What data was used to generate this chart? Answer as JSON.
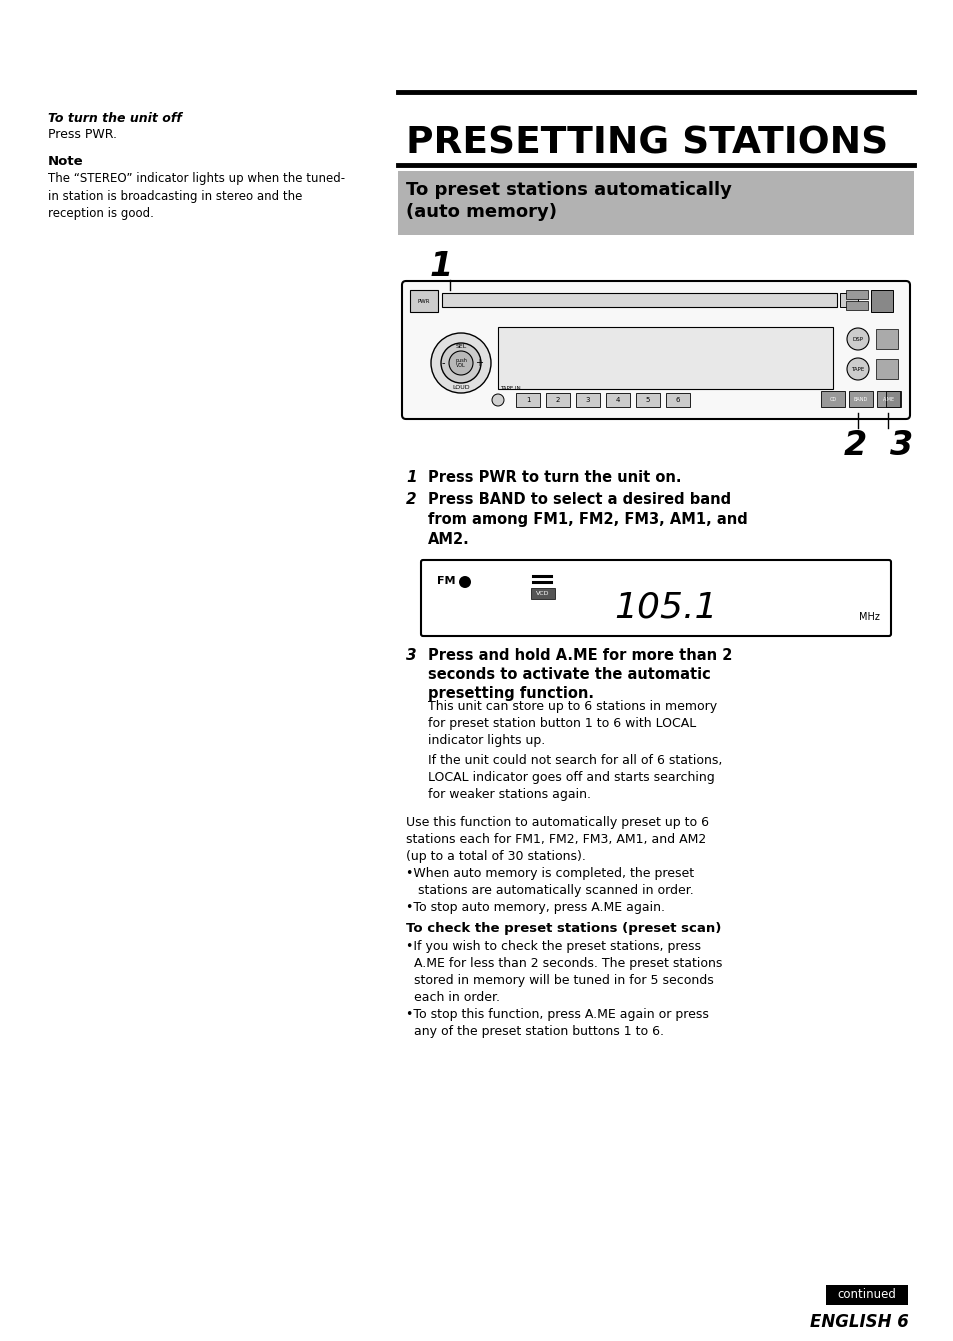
{
  "bg_color": "#ffffff",
  "left_col": {
    "to_turn_off_bold": "To turn the unit off",
    "to_turn_off_text": "Press PWR.",
    "note_bold": "Note",
    "note_text": "The “STEREO” indicator lights up when the tuned-\nin station is broadcasting in stereo and the\nreception is good."
  },
  "right_col": {
    "presetting_title": "PRESETTING STATIONS",
    "subtitle_line1": "To preset stations automatically",
    "subtitle_line2": "(auto memory)",
    "subtitle_box_bg": "#b0b0b0",
    "step1_label": "1",
    "step2_label": "2",
    "step3_label": "3",
    "step1_text_bold": "Press PWR to turn the unit on.",
    "step2_text_bold": "Press BAND to select a desired band\nfrom among FM1, FM2, FM3, AM1, and\nAM2.",
    "step3_text_bold": "Press and hold A.ME for more than 2\nseconds to activate the automatic\npresetting function.",
    "step3_text_normal_1": "This unit can store up to 6 stations in memory\nfor preset station button 1 to 6 with LOCAL\nindicator lights up.",
    "step3_text_normal_2": "If the unit could not search for all of 6 stations,\nLOCAL indicator goes off and starts searching\nfor weaker stations again.",
    "para_text": "Use this function to automatically preset up to 6\nstations each for FM1, FM2, FM3, AM1, and AM2\n(up to a total of 30 stations).\n•When auto memory is completed, the preset\n   stations are automatically scanned in order.\n•To stop auto memory, press A.ME again.",
    "preset_scan_bold": "To check the preset stations (preset scan)",
    "preset_scan_text": "•If you wish to check the preset stations, press\n  A.ME for less than 2 seconds. The preset stations\n  stored in memory will be tuned in for 5 seconds\n  each in order.\n•To stop this function, press A.ME again or press\n  any of the preset station buttons 1 to 6.",
    "continued_box": "continued",
    "english_text": "ENGLISH 6"
  }
}
